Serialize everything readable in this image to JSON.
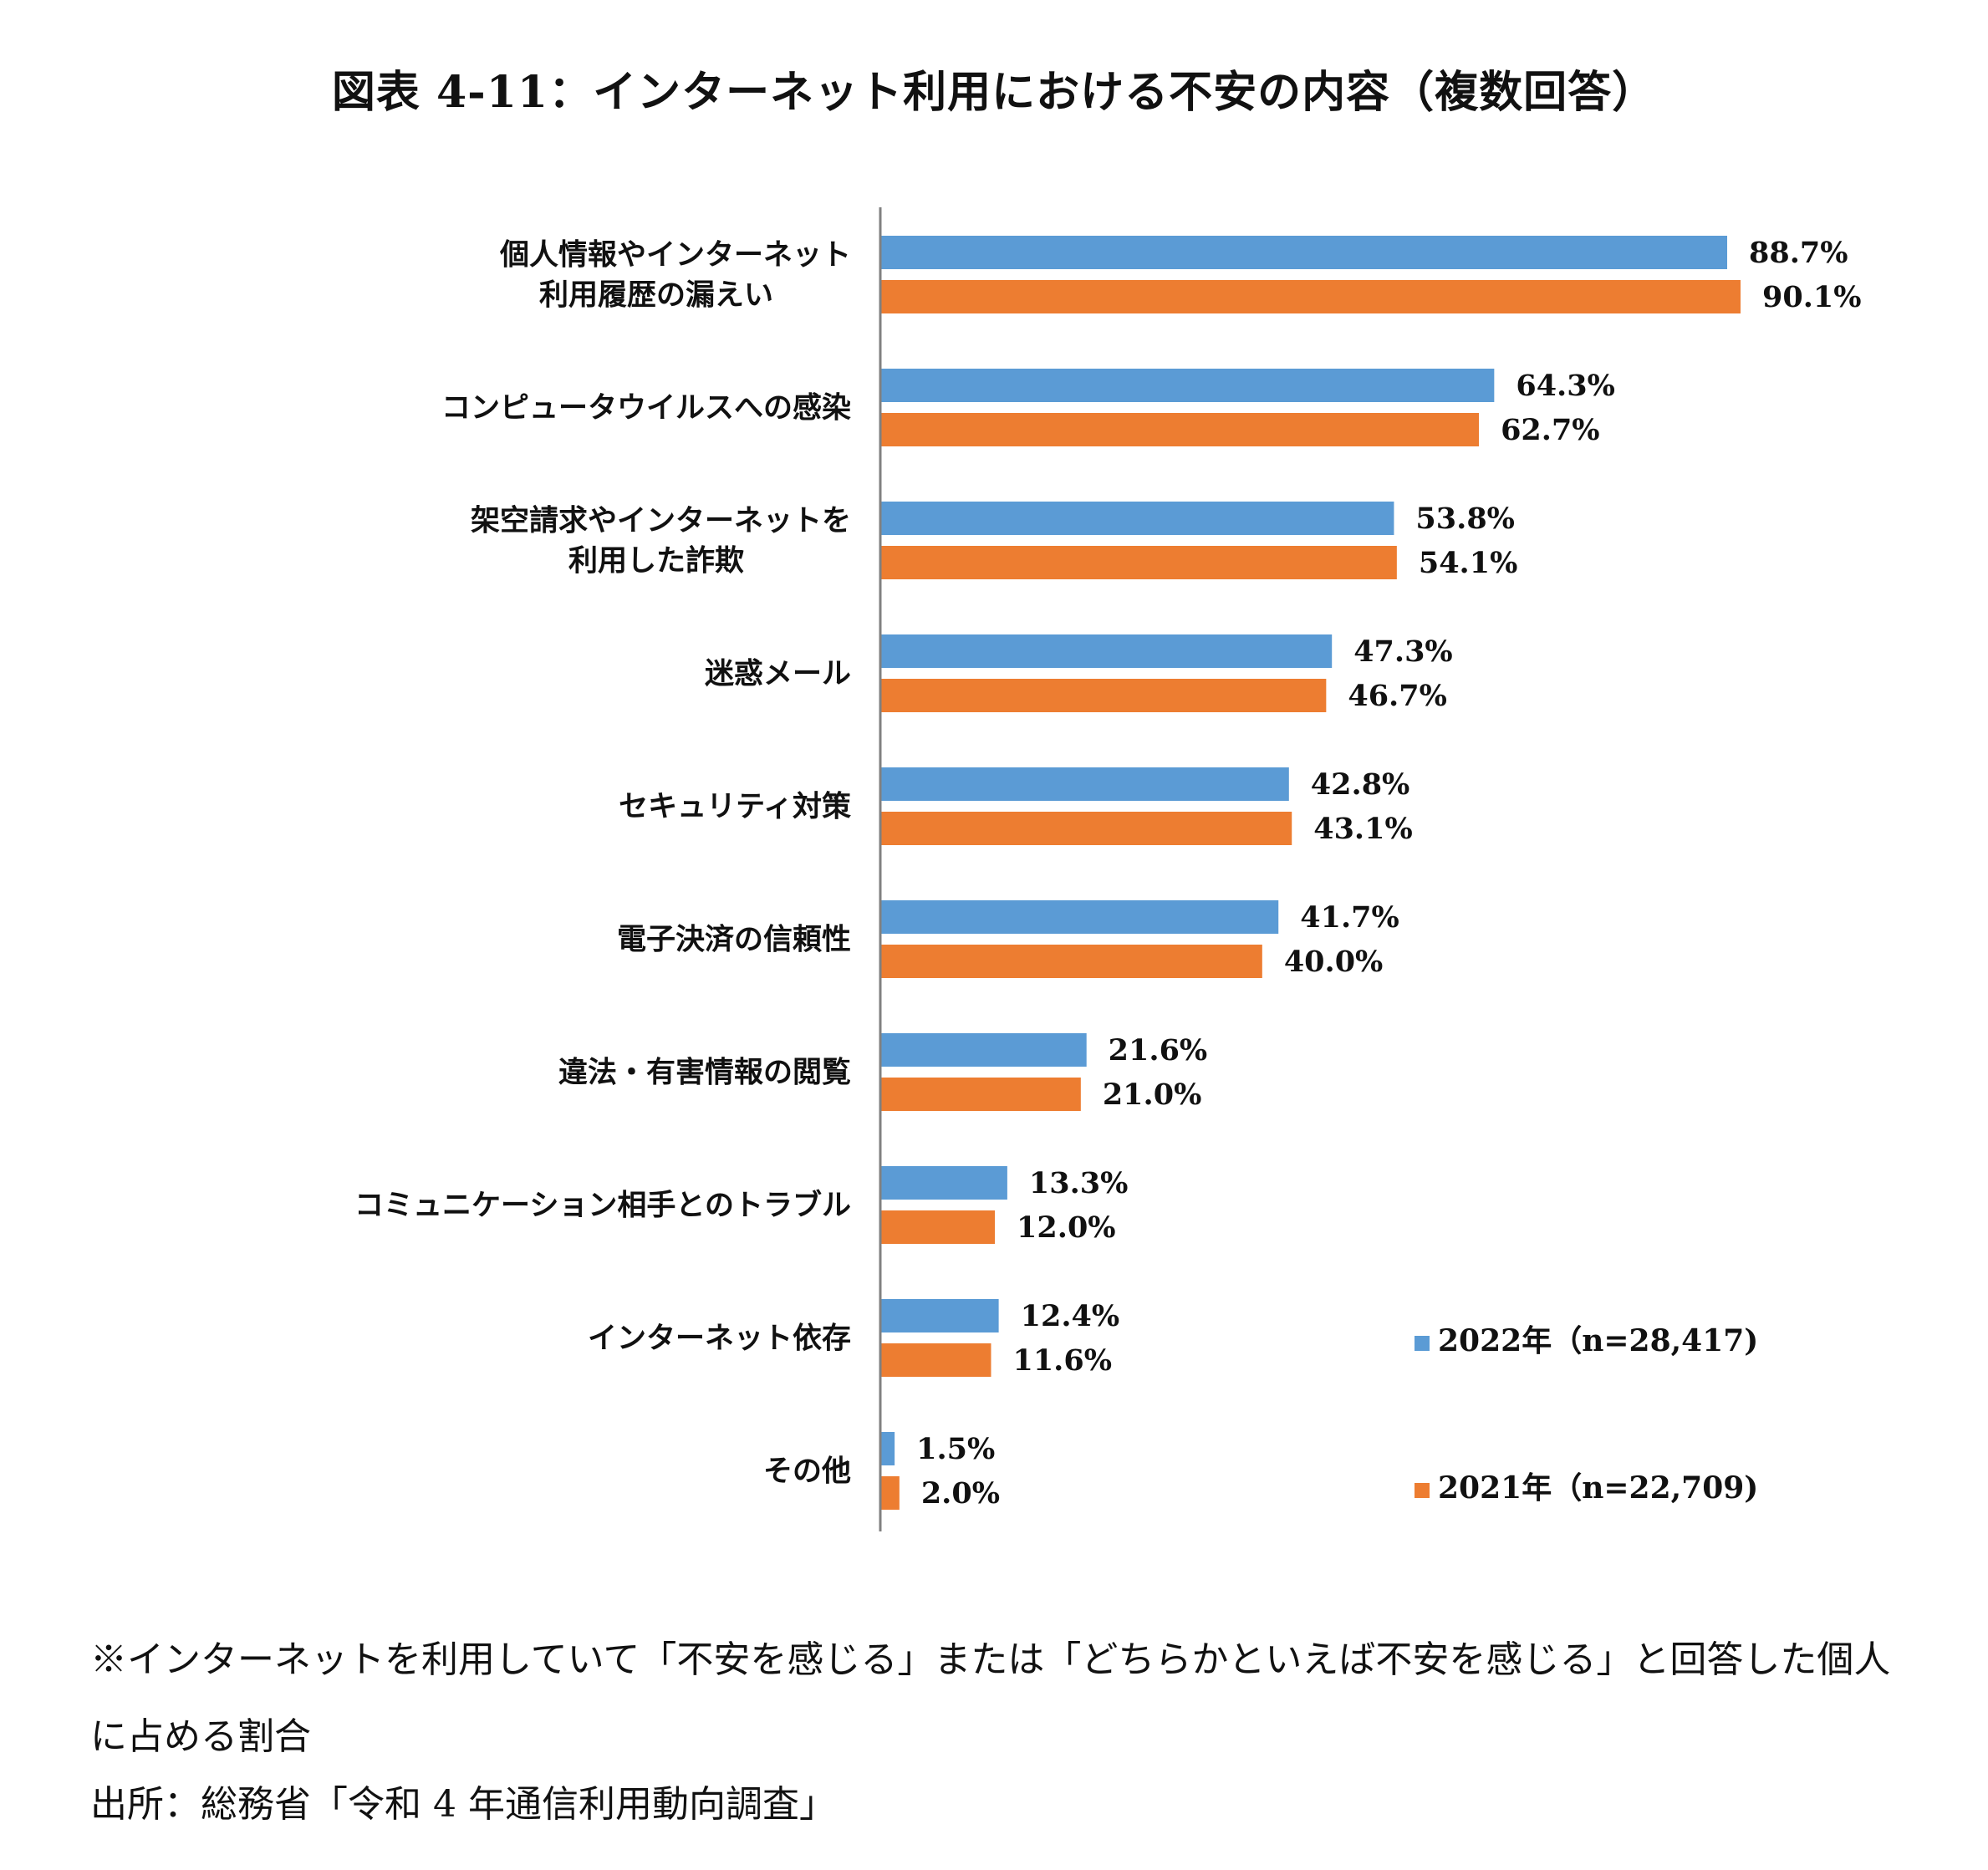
{
  "title": "図表 4-11：インターネット利用における不安の内容（複数回答）",
  "chart_data": {
    "type": "bar",
    "orientation": "horizontal",
    "categories": [
      [
        "個人情報やインターネット",
        "利用履歴の漏えい"
      ],
      [
        "コンピュータウイルスへの感染"
      ],
      [
        "架空請求やインターネットを",
        "利用した詐欺"
      ],
      [
        "迷惑メール"
      ],
      [
        "セキュリティ対策"
      ],
      [
        "電子決済の信頼性"
      ],
      [
        "違法・有害情報の閲覧"
      ],
      [
        "コミュニケーション相手とのトラブル"
      ],
      [
        "インターネット依存"
      ],
      [
        "その他"
      ]
    ],
    "series": [
      {
        "name": "2022年（n=28,417)",
        "color": "#5B9BD5",
        "values": [
          88.7,
          64.3,
          53.8,
          47.3,
          42.8,
          41.7,
          21.6,
          13.3,
          12.4,
          1.5
        ],
        "labels": [
          "88.7%",
          "64.3%",
          "53.8%",
          "47.3%",
          "42.8%",
          "41.7%",
          "21.6%",
          "13.3%",
          "12.4%",
          "1.5%"
        ]
      },
      {
        "name": "2021年（n=22,709)",
        "color": "#ED7D31",
        "values": [
          90.1,
          62.7,
          54.1,
          46.7,
          43.1,
          40.0,
          21.0,
          12.0,
          11.6,
          2.0
        ],
        "labels": [
          "90.1%",
          "62.7%",
          "54.1%",
          "46.7%",
          "43.1%",
          "40.0%",
          "21.0%",
          "12.0%",
          "11.6%",
          "2.0%"
        ]
      }
    ],
    "xlim": [
      0,
      100
    ],
    "grid": false,
    "legend_position": "bottom-right"
  },
  "note": "※インターネットを利用していて「不安を感じる」または「どちらかといえば不安を感じる」と回答した個人に占める割合",
  "source": "出所：総務省「令和 4 年通信利用動向調査」"
}
